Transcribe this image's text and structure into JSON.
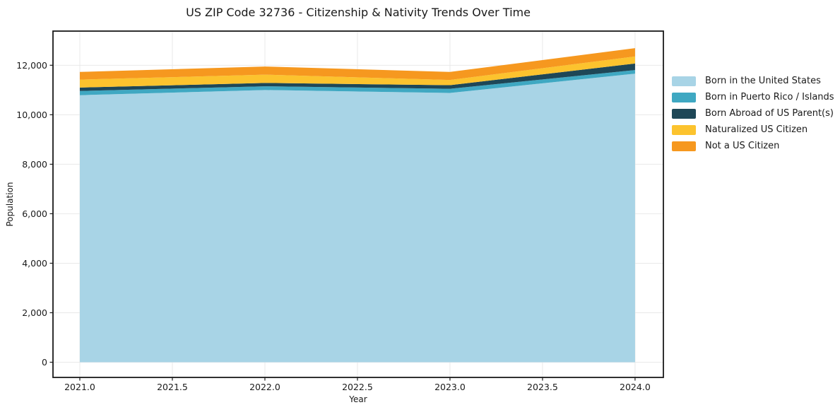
{
  "chart_data": {
    "type": "area",
    "stacked": true,
    "title": "US ZIP Code 32736 - Citizenship & Nativity Trends Over Time",
    "xlabel": "Year",
    "ylabel": "Population",
    "x": [
      2021,
      2022,
      2023,
      2024
    ],
    "series": [
      {
        "name": "Born in the United States",
        "color": "#a8d4e6",
        "values": [
          10790,
          11000,
          10880,
          11660
        ]
      },
      {
        "name": "Born in Puerto Rico / Islands",
        "color": "#3fa8c2",
        "values": [
          170,
          150,
          170,
          145
        ]
      },
      {
        "name": "Born Abroad of US Parent(s)",
        "color": "#1e4757",
        "values": [
          140,
          135,
          145,
          265
        ]
      },
      {
        "name": "Naturalized US Citizen",
        "color": "#fcc32e",
        "values": [
          320,
          335,
          210,
          285
        ]
      },
      {
        "name": "Not a US Citizen",
        "color": "#f6981f",
        "values": [
          310,
          330,
          325,
          335
        ]
      }
    ],
    "totals": [
      11730,
      11950,
      11730,
      12690
    ],
    "xticks": [
      2021.0,
      2021.5,
      2022.0,
      2022.5,
      2023.0,
      2023.5,
      2024.0
    ],
    "yticks": [
      0,
      2000,
      4000,
      6000,
      8000,
      10000,
      12000
    ],
    "xlim": [
      2020.855,
      2024.153
    ],
    "ylim": [
      -614,
      13380
    ],
    "grid": true,
    "legend_position": "right-outside"
  },
  "style": {
    "grid_color": "#e9e9e9",
    "spine_color": "#1a1a1a",
    "tick_text_color": "#1a1a1a",
    "background": "#ffffff"
  }
}
